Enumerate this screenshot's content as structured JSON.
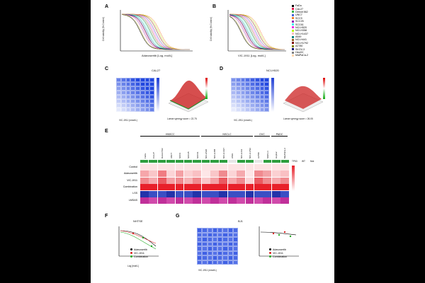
{
  "panels": {
    "A": {
      "letter": "A",
      "xlabel": "Adavosertib [Log, mol/L]",
      "ylabel": "Cell viability (% Control)",
      "xticks": [
        "-9",
        "-8",
        "-7",
        "-6",
        "-5"
      ],
      "yticks": [
        "0",
        "20",
        "40",
        "60",
        "80",
        "100",
        "120"
      ]
    },
    "B": {
      "letter": "B",
      "xlabel": "VIC-1911 [Log, mol/L]",
      "ylabel": "Cell viability (% Control)",
      "xticks": [
        "-9",
        "-8",
        "-7",
        "-6",
        "-5"
      ],
      "yticks": [
        "0",
        "20",
        "40",
        "60",
        "80",
        "100",
        "120"
      ]
    },
    "C": {
      "letter": "C",
      "title": "CAL27",
      "ylabel": "Adavosertib (nmol/L)",
      "xlabel": "VIC-1911 (nmol/L)",
      "synergy": "Loewe synergy score = 22.75",
      "yticks": [
        "10,000",
        "5,000",
        "2,500",
        "1,250",
        "625",
        "312.5",
        "156.3",
        "0"
      ],
      "colorbar": [
        "100",
        "75",
        "50",
        "25",
        "0"
      ],
      "zbar": [
        "40",
        "20",
        "0",
        "-20",
        "-40"
      ]
    },
    "D": {
      "letter": "D",
      "title": "NCI-H520",
      "ylabel": "Adavosertib (nmol/L)",
      "xlabel": "VIC-1911 (nmol/L)",
      "synergy": "Loewe synergy score = 26.05",
      "yticks": [
        "10,000",
        "5,000",
        "2,500",
        "1,250",
        "625",
        "312.5",
        "156.3",
        "0"
      ],
      "colorbar": [
        "100",
        "75",
        "50",
        "25",
        "0"
      ],
      "zbar": [
        "30",
        "15",
        "0",
        "-15",
        "-30"
      ]
    },
    "E": {
      "letter": "E",
      "groups": [
        "HNSCC",
        "NSCLC",
        "OVC",
        "PADC"
      ],
      "rows": [
        "Control",
        "Adavosertib",
        "VIC-1911",
        "Combination",
        "LSS",
        "LMSAS"
      ],
      "tp53": "TP53",
      "wt": "WT",
      "mut": "Mut"
    },
    "F": {
      "letter": "F",
      "title": "NHTSE",
      "ylabel": "Cell viability (% Control)",
      "xlabel": "Log [mol/L]",
      "legend": [
        "Adavosertib",
        "VIC-1911",
        "Combination"
      ]
    },
    "G": {
      "letter": "G",
      "title": "BJ1",
      "ylabel": "Adavosertib (nmol/L)",
      "xlabel": "VIC-1911 (nmol/L)",
      "yticks": [
        "10,000",
        "5,000",
        "2,500",
        "1,250",
        "625",
        "312.5",
        "156.3",
        "0"
      ],
      "legend": [
        "Adavosertib",
        "VIC-1911",
        "Combination"
      ]
    }
  },
  "cell_lines": [
    "FaDu",
    "CAL27",
    "Detroit 562",
    "UNC7",
    "SCC9",
    "SCC25",
    "SCC61",
    "NCI-H520",
    "NCI-H358",
    "NCI-H1437",
    "A549",
    "NCI-H441",
    "NCI-H1792",
    "A2780",
    "SKOV-3",
    "HepG2",
    "MiaPaCa-2"
  ],
  "legend_groups": [
    "HNSCC",
    "NSCLC",
    "OVC",
    "HCC",
    "PADC"
  ],
  "colors": {
    "heat_hi": "#1f3fd6",
    "heat_mid": "#6f86e8",
    "red": "#e8202a",
    "pink": "#f4b3b6",
    "green": "#2e9e3e",
    "lsS": "#2233aa",
    "lmsas": "#c0309a"
  }
}
